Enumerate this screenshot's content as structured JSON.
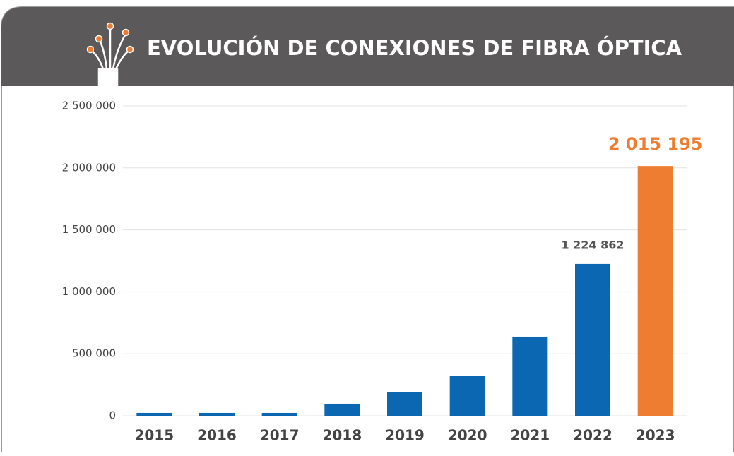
{
  "chart_data": {
    "type": "bar",
    "title": "EVOLUCIÓN DE CONEXIONES  DE FIBRA ÓPTICA",
    "categories": [
      "2015",
      "2016",
      "2017",
      "2018",
      "2019",
      "2020",
      "2021",
      "2022",
      "2023"
    ],
    "values": [
      23000,
      23000,
      23000,
      97000,
      188000,
      319000,
      638000,
      1224862,
      2015195
    ],
    "value_labels": [
      null,
      null,
      null,
      null,
      null,
      null,
      null,
      "1 224 862",
      "2 015 195"
    ],
    "colors": [
      "#0b67b1",
      "#0b67b1",
      "#0b67b1",
      "#0b67b1",
      "#0b67b1",
      "#0b67b1",
      "#0b67b1",
      "#0b67b1",
      "#ee7d31"
    ],
    "ylim": [
      0,
      2500000
    ],
    "yticks": [
      0,
      {
        "value": 500000,
        "label": "500 000"
      },
      {
        "value": 1000000,
        "label": "1 000 000"
      },
      {
        "value": 1500000,
        "label": "1 500 000"
      },
      {
        "value": 2000000,
        "label": "2 000 000"
      },
      {
        "value": 2500000,
        "label": "2 500 000"
      }
    ],
    "grid": true
  }
}
